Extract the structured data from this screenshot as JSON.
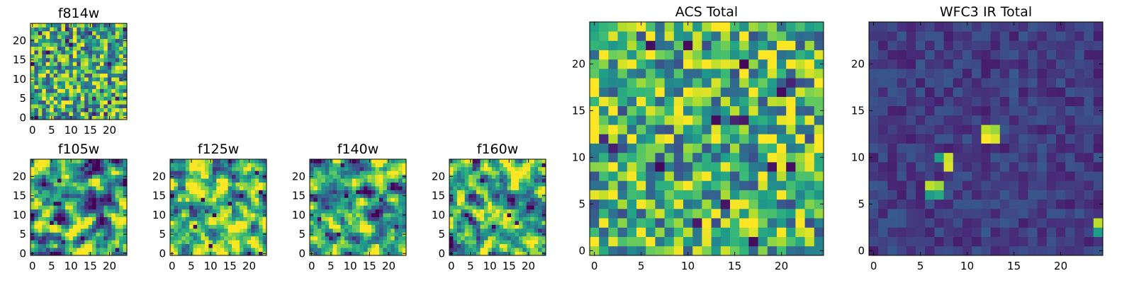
{
  "figure": {
    "layout": "mosaic of pixel-image panels",
    "colormap": "viridis"
  },
  "chart_data": [
    {
      "id": "f814w",
      "type": "heatmap",
      "title": "f814w",
      "grid": [
        25,
        25
      ],
      "xticks": [
        0,
        5,
        10,
        15,
        20
      ],
      "yticks": [
        0,
        5,
        10,
        15,
        20
      ],
      "xlim": [
        -0.5,
        24.5
      ],
      "ylim": [
        -0.5,
        24.5
      ],
      "seed": 814,
      "pattern": "noise-fine",
      "mean": 0.62
    },
    {
      "id": "f105w",
      "type": "heatmap",
      "title": "f105w",
      "grid": [
        25,
        25
      ],
      "xticks": [
        0,
        5,
        10,
        15,
        20
      ],
      "yticks": [
        0,
        5,
        10,
        15,
        20
      ],
      "xlim": [
        -0.5,
        24.5
      ],
      "ylim": [
        -0.5,
        24.5
      ],
      "seed": 105,
      "pattern": "noise-smooth",
      "mean": 0.6
    },
    {
      "id": "f125w",
      "type": "heatmap",
      "title": "f125w",
      "grid": [
        25,
        25
      ],
      "xticks": [
        0,
        5,
        10,
        15,
        20
      ],
      "yticks": [
        0,
        5,
        10,
        15,
        20
      ],
      "xlim": [
        -0.5,
        24.5
      ],
      "ylim": [
        -0.5,
        24.5
      ],
      "seed": 125,
      "pattern": "noise-smooth",
      "mean": 0.66
    },
    {
      "id": "f140w",
      "type": "heatmap",
      "title": "f140w",
      "grid": [
        25,
        25
      ],
      "xticks": [
        0,
        5,
        10,
        15,
        20
      ],
      "yticks": [
        0,
        5,
        10,
        15,
        20
      ],
      "xlim": [
        -0.5,
        24.5
      ],
      "ylim": [
        -0.5,
        24.5
      ],
      "seed": 140,
      "pattern": "noise-smooth",
      "mean": 0.58
    },
    {
      "id": "f160w",
      "type": "heatmap",
      "title": "f160w",
      "grid": [
        25,
        25
      ],
      "xticks": [
        0,
        5,
        10,
        15,
        20
      ],
      "yticks": [
        0,
        5,
        10,
        15,
        20
      ],
      "xlim": [
        -0.5,
        24.5
      ],
      "ylim": [
        -0.5,
        24.5
      ],
      "seed": 160,
      "pattern": "noise-smooth",
      "mean": 0.6
    },
    {
      "id": "acs-total",
      "type": "heatmap",
      "title": "ACS Total",
      "grid": [
        25,
        25
      ],
      "xticks": [
        0,
        5,
        10,
        15,
        20
      ],
      "yticks": [
        0,
        5,
        10,
        15,
        20
      ],
      "xlim": [
        -0.5,
        24.5
      ],
      "ylim": [
        -0.5,
        24.5
      ],
      "seed": 7,
      "pattern": "noise-fine",
      "mean": 0.66
    },
    {
      "id": "wfc3-ir-total",
      "type": "heatmap",
      "title": "WFC3 IR Total",
      "grid": [
        25,
        25
      ],
      "xticks": [
        0,
        5,
        10,
        15,
        20
      ],
      "yticks": [
        0,
        5,
        10,
        15,
        20
      ],
      "xlim": [
        -0.5,
        24.5
      ],
      "ylim": [
        -0.5,
        24.5
      ],
      "seed": 11,
      "pattern": "faint-background-with-sources",
      "mean": 0.18,
      "sources": [
        {
          "x": 12,
          "y": 12,
          "value": 1.0
        },
        {
          "x": 13,
          "y": 12,
          "value": 0.95
        },
        {
          "x": 12,
          "y": 13,
          "value": 0.9
        },
        {
          "x": 13,
          "y": 13,
          "value": 0.85
        },
        {
          "x": 8,
          "y": 10,
          "value": 0.92
        },
        {
          "x": 8,
          "y": 9,
          "value": 0.95
        },
        {
          "x": 7,
          "y": 10,
          "value": 0.55
        },
        {
          "x": 6,
          "y": 7,
          "value": 0.9
        },
        {
          "x": 7,
          "y": 7,
          "value": 0.85
        },
        {
          "x": 6,
          "y": 6,
          "value": 0.55
        },
        {
          "x": 7,
          "y": 6,
          "value": 0.6
        },
        {
          "x": 24,
          "y": 3,
          "value": 0.9
        },
        {
          "x": 24,
          "y": 2,
          "value": 0.55
        }
      ]
    }
  ]
}
